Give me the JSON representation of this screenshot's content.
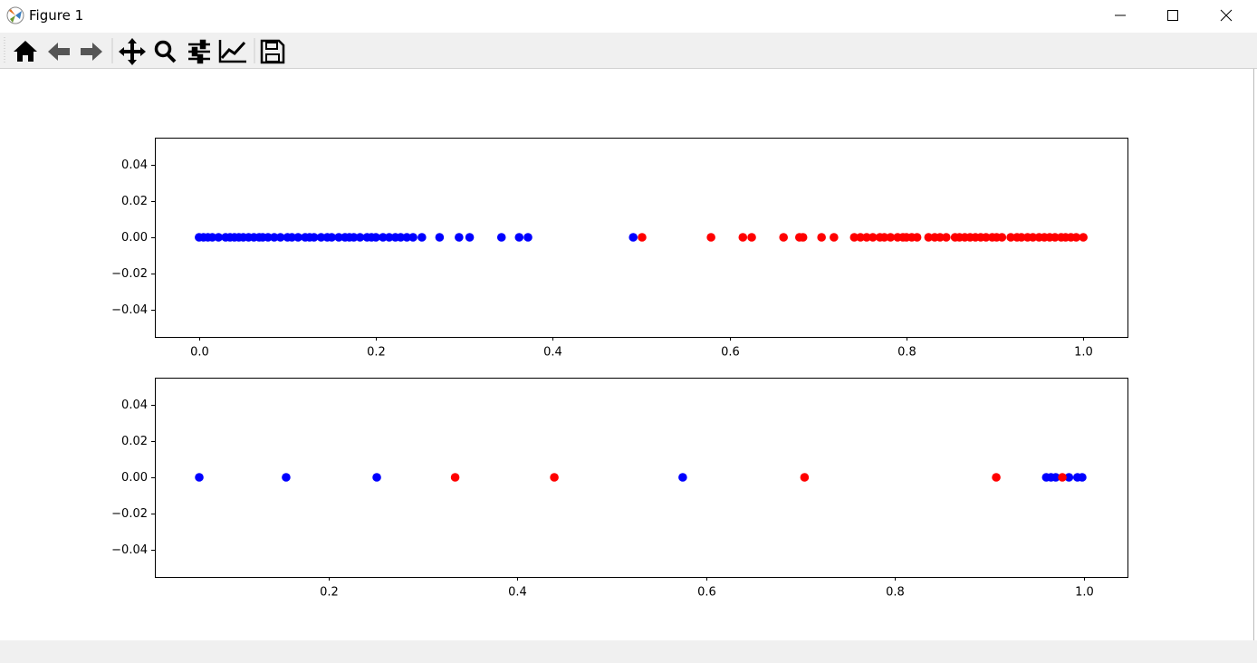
{
  "window": {
    "title": "Figure 1"
  },
  "chart_data": [
    {
      "type": "scatter",
      "xlim": [
        -0.05,
        1.05
      ],
      "ylim": [
        -0.055,
        0.055
      ],
      "xticks": [
        {
          "value": 0,
          "label": "0.0"
        },
        0.2,
        0.4,
        0.6,
        0.8,
        {
          "value": 1,
          "label": "1.0"
        }
      ],
      "yticks": [
        {
          "value": -0.04,
          "label": "−0.04"
        },
        {
          "value": -0.02,
          "label": "−0.02"
        },
        {
          "value": 0,
          "label": "0.00"
        },
        0.02,
        0.04
      ],
      "series": [
        {
          "color": "#0000ff",
          "x": [
            0.0,
            0.005,
            0.01,
            0.015,
            0.022,
            0.03,
            0.035,
            0.04,
            0.045,
            0.05,
            0.056,
            0.062,
            0.068,
            0.072,
            0.078,
            0.085,
            0.092,
            0.1,
            0.105,
            0.112,
            0.12,
            0.125,
            0.13,
            0.138,
            0.145,
            0.15,
            0.158,
            0.165,
            0.17,
            0.175,
            0.182,
            0.19,
            0.195,
            0.2,
            0.208,
            0.215,
            0.222,
            0.228,
            0.235,
            0.242,
            0.252,
            0.272,
            0.294,
            0.306,
            0.342,
            0.362,
            0.372,
            0.491
          ],
          "values": [
            0,
            0,
            0,
            0,
            0,
            0,
            0,
            0,
            0,
            0,
            0,
            0,
            0,
            0,
            0,
            0,
            0,
            0,
            0,
            0,
            0,
            0,
            0,
            0,
            0,
            0,
            0,
            0,
            0,
            0,
            0,
            0,
            0,
            0,
            0,
            0,
            0,
            0,
            0,
            0,
            0,
            0,
            0,
            0,
            0,
            0,
            0,
            0
          ]
        },
        {
          "color": "#ff0000",
          "x": [
            0.501,
            0.579,
            0.615,
            0.625,
            0.661,
            0.679,
            0.683,
            0.704,
            0.718,
            0.741,
            0.748,
            0.755,
            0.762,
            0.77,
            0.775,
            0.782,
            0.79,
            0.796,
            0.8,
            0.806,
            0.812,
            0.825,
            0.832,
            0.838,
            0.845,
            0.855,
            0.86,
            0.866,
            0.872,
            0.878,
            0.884,
            0.89,
            0.897,
            0.902,
            0.908,
            0.918,
            0.925,
            0.93,
            0.937,
            0.943,
            0.95,
            0.956,
            0.962,
            0.968,
            0.975,
            0.98,
            0.986,
            0.992,
            1.0
          ],
          "values": [
            0,
            0,
            0,
            0,
            0,
            0,
            0,
            0,
            0,
            0,
            0,
            0,
            0,
            0,
            0,
            0,
            0,
            0,
            0,
            0,
            0,
            0,
            0,
            0,
            0,
            0,
            0,
            0,
            0,
            0,
            0,
            0,
            0,
            0,
            0,
            0,
            0,
            0,
            0,
            0,
            0,
            0,
            0,
            0,
            0,
            0,
            0,
            0,
            0
          ]
        }
      ]
    },
    {
      "type": "scatter",
      "xlim": [
        0.016,
        1.046
      ],
      "ylim": [
        -0.055,
        0.055
      ],
      "xticks": [
        0.2,
        0.4,
        0.6,
        0.8,
        {
          "value": 1,
          "label": "1.0"
        }
      ],
      "yticks": [
        {
          "value": -0.04,
          "label": "−0.04"
        },
        {
          "value": -0.02,
          "label": "−0.02"
        },
        {
          "value": 0,
          "label": "0.00"
        },
        0.02,
        0.04
      ],
      "series": [
        {
          "color": "#0000ff",
          "x": [
            0.063,
            0.155,
            0.251,
            0.575,
            0.96,
            0.965,
            0.97,
            0.984,
            0.993,
            0.998
          ],
          "values": [
            0,
            0,
            0,
            0,
            0,
            0,
            0,
            0,
            0,
            0
          ]
        },
        {
          "color": "#ff0000",
          "x": [
            0.334,
            0.439,
            0.704,
            0.907,
            0.977
          ],
          "values": [
            0,
            0,
            0,
            0,
            0
          ]
        }
      ]
    }
  ]
}
